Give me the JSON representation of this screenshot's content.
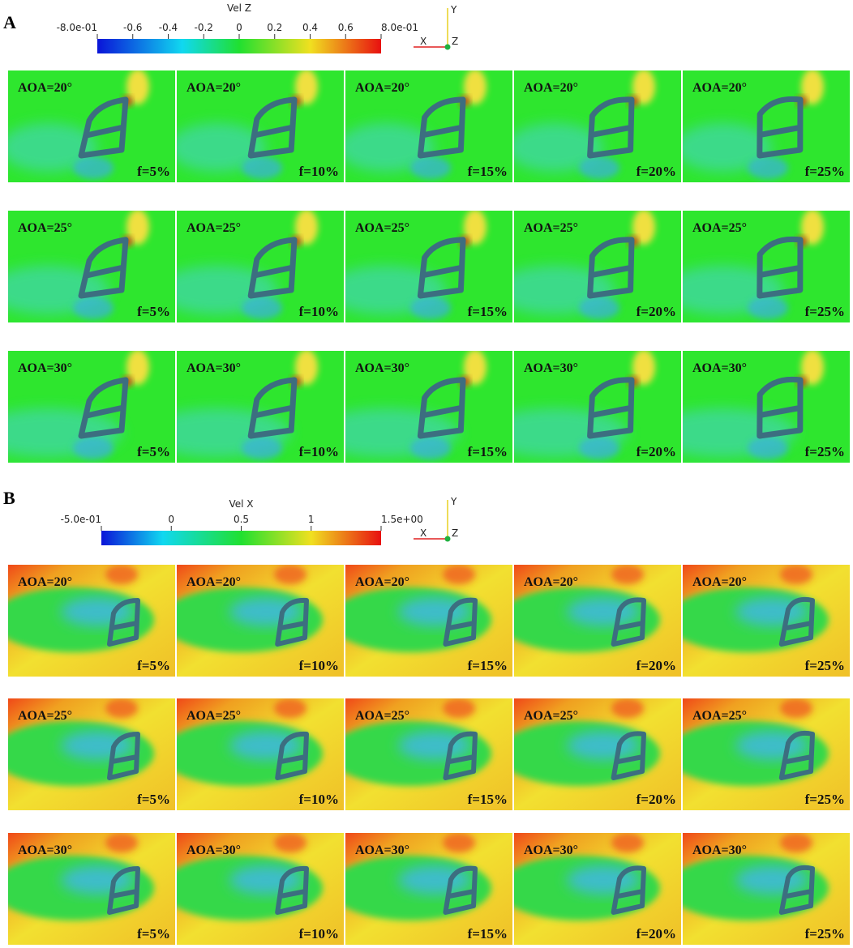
{
  "panels": [
    {
      "label": "A",
      "colorbar": {
        "title": "Vel Z",
        "ticks": [
          "-8.0e-01",
          "-0.6",
          "-0.4",
          "-0.2",
          "0",
          "0.2",
          "0.4",
          "0.6",
          "8.0e-01"
        ]
      },
      "axes": {
        "y": "Y",
        "x": "X",
        "z": "Z"
      },
      "rows": [
        {
          "aoa": "AOA=20°",
          "tiles": [
            "f=5%",
            "f=10%",
            "f=15%",
            "f=20%",
            "f=25%"
          ]
        },
        {
          "aoa": "AOA=25°",
          "tiles": [
            "f=5%",
            "f=10%",
            "f=15%",
            "f=20%",
            "f=25%"
          ]
        },
        {
          "aoa": "AOA=30°",
          "tiles": [
            "f=5%",
            "f=10%",
            "f=15%",
            "f=20%",
            "f=25%"
          ]
        }
      ]
    },
    {
      "label": "B",
      "colorbar": {
        "title": "Vel X",
        "ticks": [
          "-5.0e-01",
          "0",
          "0.5",
          "1",
          "1.5e+00"
        ]
      },
      "axes": {
        "y": "Y",
        "x": "X",
        "z": "Z"
      },
      "rows": [
        {
          "aoa": "AOA=20°",
          "tiles": [
            "f=5%",
            "f=10%",
            "f=15%",
            "f=20%",
            "f=25%"
          ]
        },
        {
          "aoa": "AOA=25°",
          "tiles": [
            "f=5%",
            "f=10%",
            "f=15%",
            "f=20%",
            "f=25%"
          ]
        },
        {
          "aoa": "AOA=30°",
          "tiles": [
            "f=5%",
            "f=10%",
            "f=15%",
            "f=20%",
            "f=25%"
          ]
        }
      ]
    }
  ]
}
